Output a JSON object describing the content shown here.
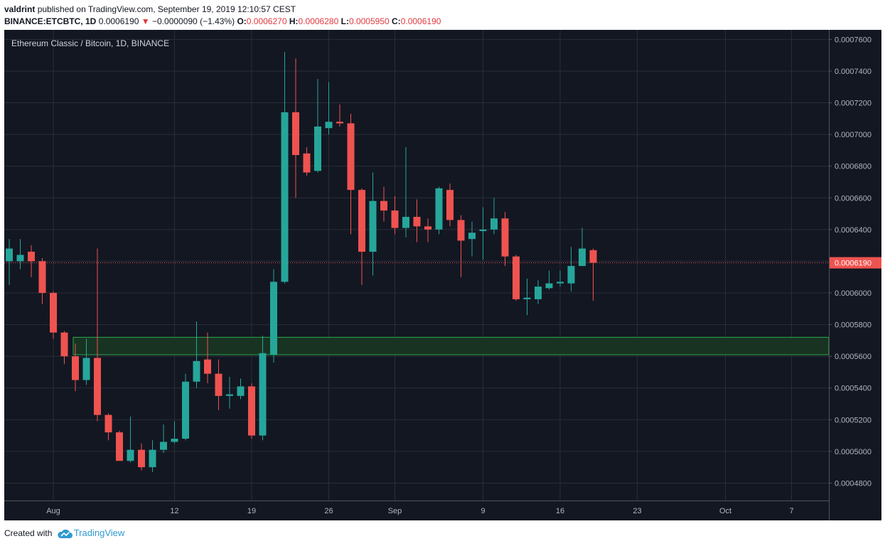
{
  "header": {
    "publisher": "valdrint",
    "published_text": "published on TradingView.com, September 19, 2019 12:10:57 CEST"
  },
  "ohlc_line": {
    "symbol": "BINANCE:ETCBTC, 1D",
    "last": "0.0006190",
    "arrow": "▼",
    "change": "−0.0000090 (−1.43%)",
    "o_label": "O:",
    "o": "0.0006270",
    "h_label": "H:",
    "h": "0.0006280",
    "l_label": "L:",
    "l": "0.0005950",
    "c_label": "C:",
    "c": "0.0006190"
  },
  "footer": {
    "created_with": "Created with",
    "brand": "TradingView",
    "logo_icon": "tradingview-cloud-icon"
  },
  "colors": {
    "background": "#131722",
    "grid": "#2a2e39",
    "up": "#26a69a",
    "down": "#ef5350",
    "zone_fill": "#193322",
    "zone_stroke": "#2ba84a",
    "last_line": "#ef5350",
    "axis_text": "#b2b5be"
  },
  "chart_data": {
    "type": "candlestick",
    "title": "Ethereum Classic / Bitcoin, 1D, BINANCE",
    "last_price_label": "0.0006190",
    "last_price": 0.000619,
    "y_range": [
      0.000469,
      0.000766
    ],
    "y_ticks": [
      "0.0007600",
      "0.0007400",
      "0.0007200",
      "0.0007000",
      "0.0006800",
      "0.0006600",
      "0.0006400",
      "0.0006200",
      "0.0006000",
      "0.0005800",
      "0.0005600",
      "0.0005400",
      "0.0005200",
      "0.0005000",
      "0.0004800"
    ],
    "x_ticks": [
      {
        "label": "Aug",
        "date": "2019-08-01"
      },
      {
        "label": "12",
        "date": "2019-08-12"
      },
      {
        "label": "19",
        "date": "2019-08-19"
      },
      {
        "label": "26",
        "date": "2019-08-26"
      },
      {
        "label": "Sep",
        "date": "2019-09-01"
      },
      {
        "label": "9",
        "date": "2019-09-09"
      },
      {
        "label": "16",
        "date": "2019-09-16"
      },
      {
        "label": "23",
        "date": "2019-09-23"
      },
      {
        "label": "Oct",
        "date": "2019-10-01"
      },
      {
        "label": "7",
        "date": "2019-10-07"
      }
    ],
    "x_range": [
      "2019-07-28",
      "2019-10-09"
    ],
    "support_zone": {
      "low": 0.000561,
      "high": 0.000572,
      "from": "2019-08-03",
      "to": "2019-10-09"
    },
    "candles": [
      {
        "date": "2019-07-28",
        "o": 0.00062,
        "h": 0.000634,
        "l": 0.000605,
        "c": 0.000628
      },
      {
        "date": "2019-07-29",
        "o": 0.00062,
        "h": 0.000634,
        "l": 0.000615,
        "c": 0.000624
      },
      {
        "date": "2019-07-30",
        "o": 0.000626,
        "h": 0.00063,
        "l": 0.00061,
        "c": 0.00062
      },
      {
        "date": "2019-07-31",
        "o": 0.00062,
        "h": 0.000622,
        "l": 0.000593,
        "c": 0.0006
      },
      {
        "date": "2019-08-01",
        "o": 0.0006,
        "h": 0.000601,
        "l": 0.000571,
        "c": 0.000575
      },
      {
        "date": "2019-08-02",
        "o": 0.000575,
        "h": 0.000576,
        "l": 0.000555,
        "c": 0.00056
      },
      {
        "date": "2019-08-03",
        "o": 0.00056,
        "h": 0.000568,
        "l": 0.000538,
        "c": 0.000545
      },
      {
        "date": "2019-08-04",
        "o": 0.000545,
        "h": 0.000571,
        "l": 0.000542,
        "c": 0.000559
      },
      {
        "date": "2019-08-05",
        "o": 0.000559,
        "h": 0.000628,
        "l": 0.000519,
        "c": 0.000523
      },
      {
        "date": "2019-08-06",
        "o": 0.000523,
        "h": 0.000524,
        "l": 0.000507,
        "c": 0.000512
      },
      {
        "date": "2019-08-07",
        "o": 0.000512,
        "h": 0.000513,
        "l": 0.000496,
        "c": 0.000494
      },
      {
        "date": "2019-08-08",
        "o": 0.000494,
        "h": 0.000522,
        "l": 0.000493,
        "c": 0.000501
      },
      {
        "date": "2019-08-09",
        "o": 0.000501,
        "h": 0.000505,
        "l": 0.000488,
        "c": 0.00049
      },
      {
        "date": "2019-08-10",
        "o": 0.00049,
        "h": 0.000507,
        "l": 0.000487,
        "c": 0.000501
      },
      {
        "date": "2019-08-11",
        "o": 0.000501,
        "h": 0.000517,
        "l": 0.000499,
        "c": 0.000506
      },
      {
        "date": "2019-08-12",
        "o": 0.000506,
        "h": 0.000519,
        "l": 0.000505,
        "c": 0.000508
      },
      {
        "date": "2019-08-13",
        "o": 0.000508,
        "h": 0.000549,
        "l": 0.000507,
        "c": 0.000544
      },
      {
        "date": "2019-08-14",
        "o": 0.000544,
        "h": 0.000582,
        "l": 0.00054,
        "c": 0.000557
      },
      {
        "date": "2019-08-15",
        "o": 0.000558,
        "h": 0.000575,
        "l": 0.000543,
        "c": 0.000549
      },
      {
        "date": "2019-08-16",
        "o": 0.000549,
        "h": 0.000558,
        "l": 0.000526,
        "c": 0.000535
      },
      {
        "date": "2019-08-17",
        "o": 0.000535,
        "h": 0.000547,
        "l": 0.000527,
        "c": 0.000536
      },
      {
        "date": "2019-08-18",
        "o": 0.000535,
        "h": 0.000546,
        "l": 0.000533,
        "c": 0.000541
      },
      {
        "date": "2019-08-19",
        "o": 0.000541,
        "h": 0.000543,
        "l": 0.000508,
        "c": 0.00051
      },
      {
        "date": "2019-08-20",
        "o": 0.00051,
        "h": 0.000573,
        "l": 0.000507,
        "c": 0.000562
      },
      {
        "date": "2019-08-21",
        "o": 0.000561,
        "h": 0.000615,
        "l": 0.000556,
        "c": 0.000607
      },
      {
        "date": "2019-08-22",
        "o": 0.000607,
        "h": 0.000752,
        "l": 0.000606,
        "c": 0.000714
      },
      {
        "date": "2019-08-23",
        "o": 0.000714,
        "h": 0.000748,
        "l": 0.00066,
        "c": 0.000687
      },
      {
        "date": "2019-08-24",
        "o": 0.000688,
        "h": 0.000692,
        "l": 0.000674,
        "c": 0.000676
      },
      {
        "date": "2019-08-25",
        "o": 0.000677,
        "h": 0.000735,
        "l": 0.000676,
        "c": 0.000705
      },
      {
        "date": "2019-08-26",
        "o": 0.000704,
        "h": 0.000733,
        "l": 0.0007,
        "c": 0.000708
      },
      {
        "date": "2019-08-27",
        "o": 0.000708,
        "h": 0.000719,
        "l": 0.000705,
        "c": 0.000707
      },
      {
        "date": "2019-08-28",
        "o": 0.000707,
        "h": 0.000713,
        "l": 0.000637,
        "c": 0.000665
      },
      {
        "date": "2019-08-29",
        "o": 0.000665,
        "h": 0.000666,
        "l": 0.000605,
        "c": 0.000626
      },
      {
        "date": "2019-08-30",
        "o": 0.000626,
        "h": 0.000676,
        "l": 0.000611,
        "c": 0.000658
      },
      {
        "date": "2019-08-31",
        "o": 0.000658,
        "h": 0.000667,
        "l": 0.000645,
        "c": 0.000652
      },
      {
        "date": "2019-09-01",
        "o": 0.000652,
        "h": 0.000661,
        "l": 0.000637,
        "c": 0.000641
      },
      {
        "date": "2019-09-02",
        "o": 0.000641,
        "h": 0.000692,
        "l": 0.000635,
        "c": 0.000648
      },
      {
        "date": "2019-09-03",
        "o": 0.000648,
        "h": 0.000659,
        "l": 0.000632,
        "c": 0.000642
      },
      {
        "date": "2019-09-04",
        "o": 0.000642,
        "h": 0.000647,
        "l": 0.000632,
        "c": 0.00064
      },
      {
        "date": "2019-09-05",
        "o": 0.00064,
        "h": 0.000667,
        "l": 0.000637,
        "c": 0.000666
      },
      {
        "date": "2019-09-06",
        "o": 0.000665,
        "h": 0.000669,
        "l": 0.000642,
        "c": 0.000646
      },
      {
        "date": "2019-09-07",
        "o": 0.000646,
        "h": 0.000649,
        "l": 0.00061,
        "c": 0.000633
      },
      {
        "date": "2019-09-08",
        "o": 0.000634,
        "h": 0.000645,
        "l": 0.000623,
        "c": 0.000638
      },
      {
        "date": "2019-09-09",
        "o": 0.000639,
        "h": 0.000654,
        "l": 0.000621,
        "c": 0.00064
      },
      {
        "date": "2019-09-10",
        "o": 0.00064,
        "h": 0.00066,
        "l": 0.000637,
        "c": 0.000647
      },
      {
        "date": "2019-09-11",
        "o": 0.000647,
        "h": 0.000651,
        "l": 0.000617,
        "c": 0.000623
      },
      {
        "date": "2019-09-12",
        "o": 0.000623,
        "h": 0.000624,
        "l": 0.000595,
        "c": 0.000596
      },
      {
        "date": "2019-09-13",
        "o": 0.000596,
        "h": 0.000609,
        "l": 0.000586,
        "c": 0.000597
      },
      {
        "date": "2019-09-14",
        "o": 0.000596,
        "h": 0.000608,
        "l": 0.000593,
        "c": 0.000604
      },
      {
        "date": "2019-09-15",
        "o": 0.000603,
        "h": 0.000614,
        "l": 0.000602,
        "c": 0.000606
      },
      {
        "date": "2019-09-16",
        "o": 0.000606,
        "h": 0.000614,
        "l": 0.000604,
        "c": 0.000607
      },
      {
        "date": "2019-09-17",
        "o": 0.000606,
        "h": 0.000629,
        "l": 0.000601,
        "c": 0.000617
      },
      {
        "date": "2019-09-18",
        "o": 0.000617,
        "h": 0.000641,
        "l": 0.000617,
        "c": 0.000628
      },
      {
        "date": "2019-09-19",
        "o": 0.000627,
        "h": 0.000628,
        "l": 0.000595,
        "c": 0.000619
      }
    ]
  }
}
